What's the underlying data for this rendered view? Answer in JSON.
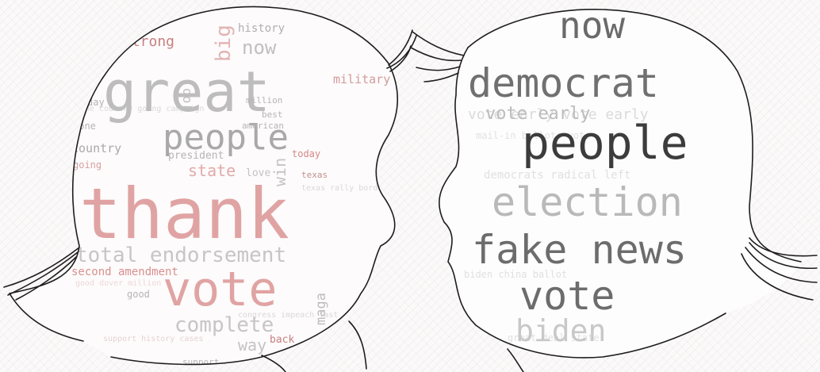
{
  "left_head": {
    "big_words": {
      "great": "great",
      "thank": "thank",
      "vote": "vote",
      "people": "people",
      "total_endorsement": "total endorsement",
      "complete": "complete",
      "big": "big",
      "strong": "strong",
      "now": "now",
      "history": "history",
      "country": "country",
      "state": "state",
      "president": "president",
      "win": "win",
      "job": "job",
      "military": "military",
      "second_amendment": "second amendment",
      "way": "way",
      "maga": "maga",
      "today": "today",
      "done": "done",
      "going": "going",
      "million": "million",
      "best": "best",
      "american": "american",
      "day": "day",
      "good": "good",
      "back": "back",
      "support": "support",
      "texas": "texas",
      "love": "love"
    }
  },
  "right_head": {
    "big_words": {
      "now": "now",
      "democrat": "democrat",
      "people": "people",
      "election": "election",
      "fake_news": "fake news",
      "vote": "vote",
      "biden": "biden",
      "vote_early": "vote early"
    }
  },
  "colors": {
    "red_word": "#e0a3a3",
    "red_dark": "#c97f7f",
    "gray_word": "#b9b9b9",
    "dark_word": "#6f6f6f",
    "outline": "#1e1e1e"
  }
}
